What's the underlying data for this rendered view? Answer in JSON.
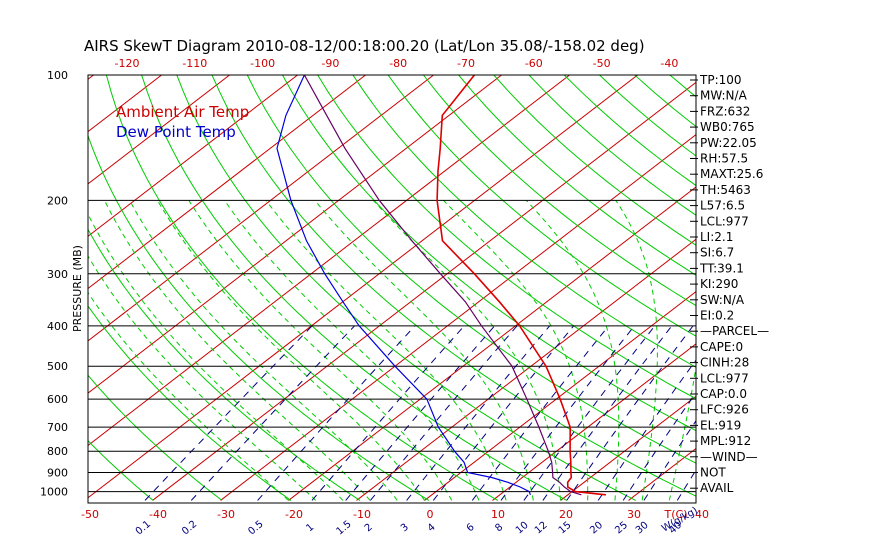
{
  "title": "AIRS SkewT Diagram 2010-08-12/00:18:00.20 (Lat/Lon 35.08/-158.02 deg)",
  "ylabel": "PRESSURE (MB)",
  "legend": [
    {
      "label": "Ambient Air Temp",
      "color": "#cc0000"
    },
    {
      "label": "Dew Point Temp",
      "color": "#0000cc"
    }
  ],
  "colors": {
    "isotherm": "#cc0000",
    "dry_adiabat": "#00cc00",
    "moist_adiabat": "#00cc00",
    "mixing_ratio": "#000080",
    "isobar": "#000000",
    "temperature": "#dd0000",
    "dewpoint": "#0000dd",
    "parcel": "#660066"
  },
  "indices": [
    "TP:100",
    "MW:N/A",
    "FRZ:632",
    "WB0:765",
    "PW:22.05",
    "RH:57.5",
    "MAXT:25.6",
    "TH:5463",
    "L57:6.5",
    "LCL:977",
    "LI:2.1",
    "SI:6.7",
    "TT:39.1",
    "KI:290",
    "SW:N/A",
    "EI:0.2",
    "—PARCEL—",
    "CAPE:0",
    "CINH:28",
    "LCL:977",
    "CAP:0.0",
    "LFC:926",
    "EL:919",
    "MPL:912",
    "—WIND—",
    "NOT",
    "AVAIL"
  ],
  "chart_data": {
    "type": "line",
    "title": "AIRS SkewT Diagram 2010-08-12/00:18:00.20 (Lat/Lon 35.08/-158.02 deg)",
    "ylabel": "PRESSURE (MB)",
    "xlabel_bottom": "T(C)",
    "mixing_label": "W(g/kg)",
    "yscale": "log",
    "ylim": [
      1050,
      100
    ],
    "xlim": [
      -52,
      40
    ],
    "pressure_ticks": [
      100,
      200,
      300,
      400,
      500,
      600,
      700,
      800,
      900,
      1000
    ],
    "top_temp_ticks": [
      -120,
      -110,
      -100,
      -90,
      -80,
      -70,
      -60,
      -50,
      -40
    ],
    "bottom_temp_ticks": [
      -50,
      -40,
      -30,
      -20,
      -10,
      0,
      10,
      20,
      30,
      40
    ],
    "mixing_ratio_labels": [
      "0.1",
      "0.2",
      "0.5",
      "1",
      "1.5",
      "2",
      "3",
      "4",
      "6",
      "8",
      "10",
      "12",
      "15",
      "20",
      "25",
      "30",
      "40"
    ],
    "mixing_ratio_values": [
      0.1,
      0.2,
      0.5,
      1,
      1.5,
      2,
      3,
      4,
      6,
      8,
      10,
      12,
      15,
      20,
      25,
      30,
      40
    ],
    "series": [
      {
        "name": "Ambient Air Temp",
        "points": [
          [
            1018,
            25.6
          ],
          [
            1000,
            20.5
          ],
          [
            975,
            18.5
          ],
          [
            950,
            17.6
          ],
          [
            925,
            17.2
          ],
          [
            900,
            16.2
          ],
          [
            850,
            14.2
          ],
          [
            800,
            12.0
          ],
          [
            700,
            7.4
          ],
          [
            600,
            0.6
          ],
          [
            500,
            -7.8
          ],
          [
            400,
            -19.4
          ],
          [
            350,
            -27.0
          ],
          [
            300,
            -36.0
          ],
          [
            250,
            -47.0
          ],
          [
            200,
            -55.5
          ],
          [
            170,
            -61.0
          ],
          [
            150,
            -65.0
          ],
          [
            125,
            -71.0
          ],
          [
            100,
            -74.0
          ]
        ]
      },
      {
        "name": "Dew Point Temp",
        "points": [
          [
            1018,
            14.5
          ],
          [
            1000,
            13.7
          ],
          [
            975,
            11.5
          ],
          [
            950,
            8.8
          ],
          [
            925,
            5.5
          ],
          [
            900,
            1.0
          ],
          [
            850,
            -1.5
          ],
          [
            800,
            -5.0
          ],
          [
            700,
            -12.0
          ],
          [
            600,
            -19.0
          ],
          [
            500,
            -30.0
          ],
          [
            400,
            -43.0
          ],
          [
            350,
            -50.0
          ],
          [
            300,
            -58.0
          ],
          [
            250,
            -67.0
          ],
          [
            200,
            -77.0
          ],
          [
            150,
            -89.0
          ],
          [
            125,
            -94.0
          ],
          [
            100,
            -99.0
          ]
        ]
      },
      {
        "name": "Parcel",
        "points": [
          [
            1018,
            22.0
          ],
          [
            1000,
            19.8
          ],
          [
            975,
            18.0
          ],
          [
            950,
            16.4
          ],
          [
            925,
            14.5
          ],
          [
            900,
            13.5
          ],
          [
            850,
            11.4
          ],
          [
            800,
            8.8
          ],
          [
            700,
            2.8
          ],
          [
            600,
            -4.3
          ],
          [
            500,
            -12.8
          ],
          [
            400,
            -25.0
          ],
          [
            350,
            -32.0
          ],
          [
            300,
            -41.0
          ],
          [
            250,
            -51.5
          ],
          [
            200,
            -64.0
          ],
          [
            150,
            -79.0
          ],
          [
            125,
            -88.0
          ],
          [
            100,
            -99.0
          ]
        ]
      }
    ]
  }
}
